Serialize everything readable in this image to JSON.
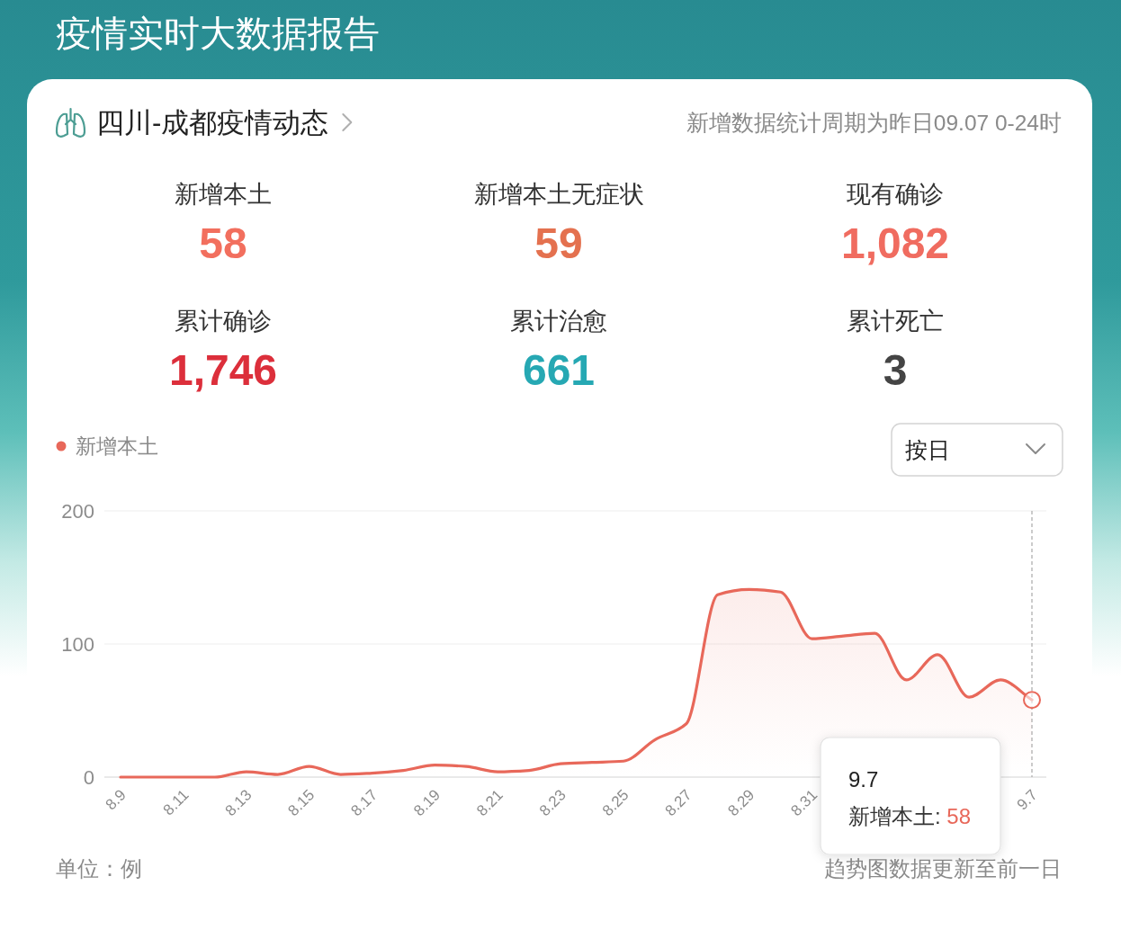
{
  "chart_data": [
    {
      "type": "other",
      "title": "疫情实时大数据报告",
      "subtitle": "四川-成都疫情动态",
      "annotations": [
        "新增数据统计周期为昨日09.07 0-24时"
      ],
      "categories": [
        "新增本土",
        "新增本土无症状",
        "现有确诊",
        "累计确诊",
        "累计治愈",
        "累计死亡"
      ],
      "value_labels": [
        "58",
        "59",
        "1,082",
        "1,746",
        "661",
        "3"
      ],
      "colors": [
        "#f26f5e",
        "#e4714f",
        "#f06c60",
        "#dc2f3b",
        "#26a8b3",
        "#444444"
      ]
    },
    {
      "type": "area",
      "categories": [
        "8.9",
        null,
        "8.11",
        null,
        "8.13",
        null,
        "8.15",
        null,
        "8.17",
        null,
        "8.19",
        null,
        "8.21",
        null,
        "8.23",
        null,
        "8.25",
        null,
        "8.27",
        null,
        "8.29",
        null,
        "8.31",
        null,
        null,
        null,
        null,
        null,
        null,
        "9.7"
      ],
      "series": [
        {
          "name": "新增本土",
          "color": "#e8685a",
          "values": [
            0,
            0,
            0,
            0,
            4,
            2,
            8,
            2,
            3,
            5,
            9,
            8,
            4,
            5,
            10,
            11,
            12,
            28,
            40,
            137,
            141,
            139,
            104,
            106,
            108,
            73,
            92,
            60,
            73,
            58
          ]
        }
      ],
      "ylim": [
        0,
        200
      ],
      "yticks": [
        0,
        100,
        200
      ],
      "grid": "y",
      "legend": "top left",
      "ref_lines": [
        {
          "axis": "x",
          "value": "9.7",
          "color": "#b0b0b0",
          "line_style": "dashed"
        }
      ],
      "annotations": [
        "按日",
        "单位：例",
        "趋势图数据更新至前一日",
        "9.7\n新增本土: 58"
      ]
    }
  ]
}
